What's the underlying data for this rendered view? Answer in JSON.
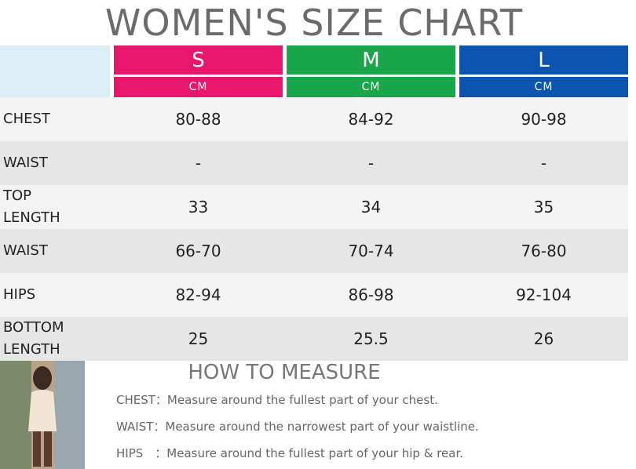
{
  "header": {
    "title": "WOMEN'S SIZE CHART"
  },
  "table": {
    "columns": [
      {
        "size": "S",
        "unit": "CM",
        "color": "#e8176b"
      },
      {
        "size": "M",
        "unit": "CM",
        "color": "#1aa64b"
      },
      {
        "size": "L",
        "unit": "CM",
        "color": "#0b55b0"
      }
    ],
    "rows": [
      {
        "label": "CHEST",
        "values": [
          "80-88",
          "84-92",
          "90-98"
        ]
      },
      {
        "label": "WAIST",
        "values": [
          "-",
          "-",
          "-"
        ]
      },
      {
        "label": "TOP LENGTH",
        "values": [
          "33",
          "34",
          "35"
        ]
      },
      {
        "label": "WAIST",
        "values": [
          "66-70",
          "70-74",
          "76-80"
        ]
      },
      {
        "label": "HIPS",
        "values": [
          "82-94",
          "86-98",
          "92-104"
        ]
      },
      {
        "label": "BOTTOM LENGTH",
        "values": [
          "25",
          "25.5",
          "26"
        ]
      }
    ]
  },
  "measure": {
    "title": "HOW TO MEASURE",
    "items": [
      {
        "label": "CHEST：",
        "text": "Measure around the fullest part of your chest."
      },
      {
        "label": "WAIST：",
        "text": "Measure around the narrowest part of your waistline."
      },
      {
        "label": "HIPS　：",
        "text": "Measure around the fullest part of your hip & rear."
      }
    ]
  }
}
